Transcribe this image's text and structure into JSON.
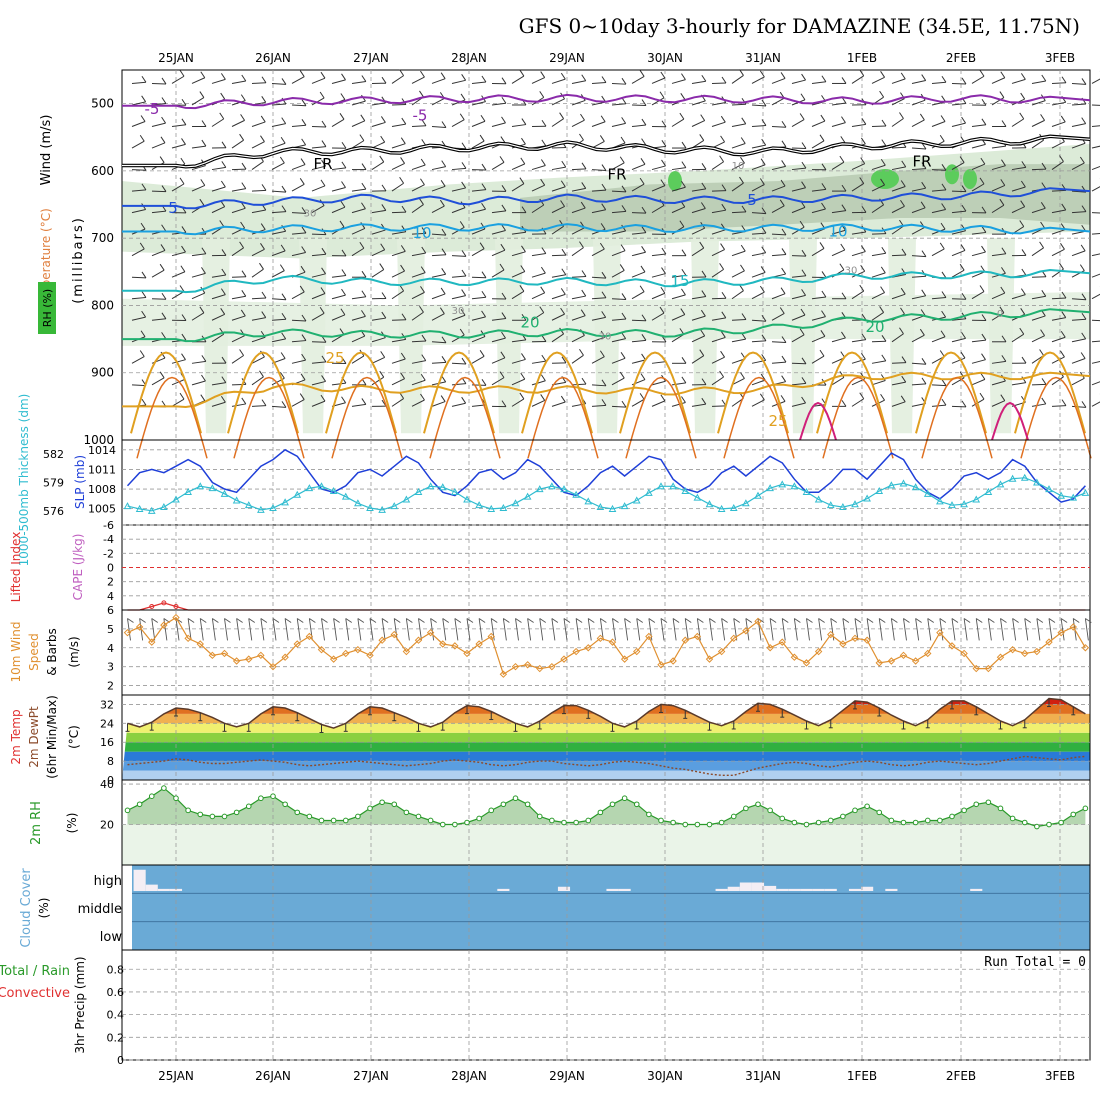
{
  "title": "GFS 0~10day 3-hourly for DAMAZINE (34.5E, 11.75N)",
  "dates": [
    "25JAN",
    "26JAN",
    "27JAN",
    "28JAN",
    "29JAN",
    "30JAN",
    "31JAN",
    "1FEB",
    "2FEB",
    "3FEB"
  ],
  "colors": {
    "rh_green": "#38b838",
    "dewpt": "#8b4a2a",
    "rh2m": "#2a9a2a",
    "cloud": "#6aaad6",
    "slp": "#1f3fd8",
    "thickness": "#30bcd0",
    "wind10m": "#e09030",
    "lifted": "#e03030",
    "cape": "#c060c0"
  },
  "panels": {
    "upper_air": {
      "label_wind": "Wind (m/s)",
      "label_temp": "Temperature (°C)",
      "label_rh": "RH (%)",
      "label_units": "(millibars)",
      "yticks": [
        "500",
        "600",
        "700",
        "800",
        "900",
        "1000"
      ],
      "contour_labels": [
        "-5",
        "-5",
        "FR",
        "FR",
        "FR",
        "5",
        "5",
        "10",
        "10",
        "15",
        "20",
        "20",
        "25",
        "25",
        "10",
        "30",
        "30",
        "30",
        "30",
        "0"
      ]
    },
    "slp_thickness": {
      "label_thickness": "1000-500mb Thickness (dm)",
      "label_slp": "SLP (mb)",
      "yticks_left": [
        "582",
        "579",
        "576"
      ],
      "yticks_right": [
        "1014",
        "1011",
        "1008",
        "1005"
      ]
    },
    "lifted_cape": {
      "label_lifted": "Lifted Index",
      "label_cape": "CAPE (J/kg)",
      "yticks": [
        "-6",
        "-4",
        "-2",
        "0",
        "2",
        "4",
        "6"
      ]
    },
    "wind10m": {
      "label_wind": "10m Wind",
      "label_speed": "Speed",
      "label_barbs": "& Barbs",
      "label_units": "(m/s)",
      "yticks": [
        "5",
        "4",
        "3",
        "2"
      ]
    },
    "temp2m": {
      "label_temp": "2m Temp",
      "label_dewpt": "2m DewPt",
      "label_minmax": "(6hr Min/Max)",
      "label_units": "(°C)",
      "yticks": [
        "32",
        "24",
        "16",
        "8",
        "0"
      ]
    },
    "rh2m": {
      "label": "2m RH",
      "label_units": "(%)",
      "yticks": [
        "40",
        "20"
      ]
    },
    "cloud": {
      "label": "Cloud Cover",
      "label_units": "(%)",
      "levels": [
        "high",
        "middle",
        "low"
      ]
    },
    "precip": {
      "label_total": "Total / Rain",
      "label_conv": "Convective",
      "label_units": "3hr Precip (mm)",
      "yticks": [
        "0.8",
        "0.6",
        "0.4",
        "0.2",
        "0"
      ],
      "run_total": "Run Total = 0"
    }
  },
  "chart_data": [
    {
      "type": "line",
      "panel": "upper_air",
      "ylabel": "(millibars)",
      "ylim": [
        1000,
        450
      ],
      "x": [
        "25JAN",
        "26JAN",
        "27JAN",
        "28JAN",
        "29JAN",
        "30JAN",
        "31JAN",
        "1FEB",
        "2FEB",
        "3FEB"
      ],
      "series": [
        {
          "name": "-5",
          "values": [
            503,
            497,
            495,
            493,
            492,
            493,
            494,
            496,
            492,
            495
          ]
        },
        {
          "name": "FR",
          "values": [
            592,
            572,
            570,
            565,
            562,
            568,
            572,
            563,
            558,
            553
          ]
        },
        {
          "name": "5",
          "values": [
            652,
            645,
            640,
            645,
            640,
            643,
            643,
            640,
            637,
            630
          ]
        },
        {
          "name": "10",
          "values": [
            690,
            686,
            684,
            684,
            684,
            686,
            685,
            684,
            686,
            690
          ]
        },
        {
          "name": "15",
          "values": [
            778,
            760,
            765,
            765,
            764,
            767,
            764,
            756,
            755,
            752
          ]
        },
        {
          "name": "20",
          "values": [
            850,
            840,
            843,
            843,
            840,
            842,
            835,
            820,
            816,
            810
          ]
        },
        {
          "name": "25",
          "values": [
            950,
            920,
            925,
            925,
            925,
            928,
            925,
            905,
            905,
            905
          ]
        }
      ]
    },
    {
      "type": "line",
      "panel": "slp_thickness",
      "x_step_hours": 3,
      "series": [
        {
          "name": "SLP (mb)",
          "values": [
            1008.0,
            1007.5,
            1008.5,
            1010.5,
            1011.0,
            1010.5,
            1011.5,
            1012.5,
            1011.5,
            1009.0,
            1008.0,
            1007.5,
            1009.5,
            1011.5,
            1012.5,
            1014.0,
            1013.0,
            1010.5,
            1008.0,
            1007.5,
            1008.5,
            1010.5,
            1011.0,
            1010.0,
            1011.5,
            1013.0,
            1012.0,
            1009.5,
            1007.5,
            1007.0,
            1008.5,
            1010.5,
            1011.0,
            1009.5,
            1010.5,
            1012.5,
            1011.5,
            1009.5,
            1007.5,
            1007.0,
            1008.5,
            1010.5,
            1011.5,
            1010.0,
            1011.5,
            1013.0,
            1012.5,
            1009.5,
            1008.0,
            1007.5,
            1008.5,
            1010.5,
            1011.5,
            1010.0,
            1011.5,
            1013.0,
            1012.0,
            1009.5,
            1007.5,
            1007.5,
            1009.0,
            1011.0,
            1011.0,
            1009.5,
            1011.5,
            1013.5,
            1012.5,
            1009.5,
            1007.5,
            1006.5,
            1008.0,
            1010.0,
            1010.5,
            1009.5,
            1010.5,
            1012.5,
            1011.5,
            1009.0,
            1007.5,
            1006.0,
            1006.5,
            1008.5,
            1009.5,
            1008.0,
            1009.5,
            1011.0,
            1010.5,
            1008.5,
            1006.5,
            1005.5,
            1006.5,
            1008.5,
            1009.0,
            1007.5
          ]
        },
        {
          "name": "1000-500mb Thickness (dm)",
          "values": [
            577.8,
            577.2,
            576.5,
            576.2,
            576.0,
            576.4,
            577.2,
            578.0,
            578.6,
            578.4,
            577.8,
            577.1,
            576.6,
            576.1,
            576.3,
            576.9,
            577.7,
            578.4,
            578.6,
            578.1,
            577.5,
            576.8,
            576.3,
            576.1,
            576.5,
            577.2,
            578.0,
            578.6,
            578.5,
            578.0,
            577.2,
            576.6,
            576.2,
            576.3,
            576.8,
            577.5,
            578.3,
            578.6,
            578.3,
            577.7,
            577.0,
            576.4,
            576.2,
            576.5,
            577.1,
            577.9,
            578.6,
            578.6,
            578.1,
            577.4,
            576.7,
            576.2,
            576.3,
            576.8,
            577.6,
            578.4,
            578.8,
            578.6,
            578.0,
            577.2,
            576.6,
            576.4,
            576.7,
            577.3,
            578.1,
            578.7,
            578.9,
            578.5,
            577.8,
            577.0,
            576.6,
            576.7,
            577.2,
            578.0,
            578.8,
            579.4,
            579.5,
            579.0,
            578.3,
            577.6,
            577.4,
            577.9,
            578.8,
            579.7,
            580.4,
            580.6,
            580.1,
            579.3,
            578.6,
            578.4,
            578.9,
            579.8,
            580.7,
            581.2
          ]
        }
      ]
    },
    {
      "type": "line",
      "panel": "lifted_cape",
      "ylim": [
        6,
        -6
      ],
      "series": [
        {
          "name": "Lifted Index",
          "values": [
            5.0,
            6.5,
            6.5,
            6.5,
            5.5,
            5.0,
            5.5,
            6.5,
            6.5,
            6.5,
            6.5,
            6.5,
            6.5,
            6.5,
            6.5,
            6.5,
            6.5,
            6.5,
            6.5,
            6.0,
            6.0,
            6.5,
            6.5,
            6.5,
            6.5,
            6.5,
            6.5,
            6.5,
            6.5,
            6.5,
            6.5,
            6.5,
            6.5,
            6.5,
            6.5,
            6.5,
            6.5,
            6.5,
            6.5,
            6.5,
            6.5,
            6.5,
            6.5,
            6.5,
            6.5,
            6.5,
            6.5,
            6.5,
            6.5,
            6.5,
            6.5,
            6.0,
            6.0,
            6.5,
            6.5,
            6.5,
            6.5,
            6.5,
            6.5,
            6.5,
            6.5,
            6.5,
            6.5,
            6.5,
            6.5,
            6.5,
            6.5,
            6.5,
            6.5,
            6.5,
            6.5,
            6.5,
            6.5,
            6.5,
            6.5,
            6.5,
            6.5,
            6.5,
            6.5,
            6.5,
            6.5,
            6.5,
            6.5,
            6.5,
            6.5,
            6.5,
            6.5,
            6.5,
            6.0,
            5.0,
            5.0,
            6.0,
            6.5,
            6.5
          ]
        },
        {
          "name": "CAPE (J/kg)",
          "values": [
            0
          ]
        }
      ]
    },
    {
      "type": "line",
      "panel": "wind10m",
      "ylim": [
        1.5,
        6
      ],
      "series": [
        {
          "name": "10m Wind Speed",
          "values": [
            3.6,
            5.0,
            4.8,
            5.1,
            4.3,
            5.2,
            5.6,
            4.5,
            4.2,
            3.6,
            3.7,
            3.3,
            3.4,
            3.6,
            3.0,
            3.5,
            4.2,
            4.6,
            3.9,
            3.4,
            3.7,
            3.9,
            3.6,
            4.4,
            4.7,
            3.8,
            4.4,
            4.8,
            4.2,
            4.1,
            3.7,
            4.2,
            4.6,
            2.6,
            3.0,
            3.1,
            2.9,
            3.0,
            3.4,
            3.8,
            4.0,
            4.5,
            4.3,
            3.4,
            3.8,
            4.6,
            3.1,
            3.3,
            4.4,
            4.6,
            3.4,
            3.8,
            4.5,
            4.9,
            5.4,
            4.0,
            4.3,
            3.5,
            3.2,
            3.8,
            4.7,
            4.2,
            4.5,
            4.4,
            3.2,
            3.3,
            3.6,
            3.3,
            3.7,
            4.8,
            4.1,
            3.7,
            2.9,
            2.9,
            3.5,
            3.9,
            3.7,
            3.8,
            4.3,
            4.8,
            5.1,
            4.0,
            3.3,
            2.7,
            3.4,
            3.8,
            3.3,
            4.6,
            4.7,
            4.7,
            3.6,
            3.4,
            3.3,
            3.9
          ]
        }
      ]
    },
    {
      "type": "area",
      "panel": "temp2m",
      "ylim": [
        0,
        36
      ],
      "series": [
        {
          "name": "2m Temp",
          "values": [
            27.5,
            26.0,
            24.0,
            22.5,
            24.5,
            28.0,
            30.5,
            30.0,
            28.5,
            26.5,
            24.0,
            22.5,
            24.0,
            28.0,
            31.0,
            30.5,
            28.5,
            26.0,
            23.5,
            22.0,
            24.0,
            28.0,
            31.0,
            30.5,
            28.5,
            26.5,
            24.0,
            22.5,
            24.5,
            28.5,
            31.5,
            31.0,
            29.0,
            26.5,
            24.0,
            22.5,
            25.0,
            28.5,
            31.5,
            31.5,
            29.5,
            27.0,
            24.0,
            22.5,
            25.0,
            29.0,
            32.0,
            31.5,
            29.5,
            27.0,
            24.5,
            23.0,
            25.0,
            29.0,
            32.5,
            32.0,
            30.0,
            27.5,
            25.0,
            23.0,
            25.5,
            29.5,
            33.5,
            33.0,
            30.5,
            27.5,
            25.0,
            23.0,
            25.5,
            30.0,
            33.5,
            33.5,
            31.0,
            28.0,
            25.0,
            23.0,
            25.5,
            30.0,
            34.5,
            34.0,
            31.0,
            28.0,
            25.5,
            24.0,
            26.0
          ]
        },
        {
          "name": "2m DewPt",
          "values": [
            8.0,
            7.0,
            6.5,
            7.0,
            7.5,
            8.0,
            9.0,
            8.5,
            7.5,
            7.0,
            7.0,
            7.5,
            8.0,
            8.5,
            8.0,
            7.5,
            6.5,
            6.0,
            6.5,
            7.0,
            7.5,
            8.0,
            7.5,
            7.0,
            6.5,
            6.0,
            6.5,
            7.0,
            8.0,
            8.5,
            8.0,
            7.5,
            6.5,
            6.0,
            6.5,
            7.5,
            8.0,
            8.0,
            7.0,
            6.5,
            6.0,
            6.5,
            7.5,
            8.0,
            7.5,
            7.0,
            6.0,
            5.0,
            4.5,
            3.5,
            2.5,
            2.0,
            2.0,
            3.5,
            5.0,
            6.0,
            7.0,
            7.5,
            7.0,
            6.0,
            5.5,
            6.5,
            7.5,
            8.0,
            7.5,
            6.5,
            6.0,
            6.5,
            7.5,
            8.0,
            7.5,
            7.0,
            6.5,
            7.0,
            8.0,
            9.0,
            10.0,
            9.5,
            9.0,
            8.5,
            9.5,
            10.0,
            9.5,
            9.0
          ]
        }
      ]
    },
    {
      "type": "area",
      "panel": "rh2m",
      "ylim": [
        0,
        42
      ],
      "series": [
        {
          "name": "2m RH",
          "values": [
            26,
            25,
            27,
            30,
            34,
            38,
            33,
            27,
            25,
            24,
            24,
            26,
            29,
            33,
            34,
            30,
            26,
            24,
            22,
            22,
            22,
            24,
            28,
            31,
            30,
            26,
            24,
            22,
            20,
            20,
            21,
            23,
            27,
            30,
            33,
            30,
            24,
            22,
            21,
            21,
            22,
            26,
            30,
            33,
            30,
            25,
            22,
            21,
            20,
            20,
            20,
            21,
            24,
            28,
            30,
            27,
            23,
            21,
            20,
            21,
            22,
            24,
            27,
            29,
            26,
            22,
            21,
            21,
            22,
            22,
            24,
            27,
            30,
            31,
            28,
            23,
            21,
            19,
            20,
            21,
            25,
            28,
            30,
            30,
            25,
            21,
            20,
            22,
            27,
            33,
            35,
            33
          ]
        }
      ]
    },
    {
      "type": "bar",
      "panel": "cloud",
      "series": [
        {
          "name": "high",
          "values": [
            0,
            0,
            10,
            50,
            15,
            5,
            5,
            0,
            0,
            0,
            0,
            0,
            0,
            0,
            0,
            0,
            0,
            0,
            0,
            0,
            0,
            0,
            0,
            0,
            0,
            0,
            0,
            0,
            0,
            0,
            0,
            0,
            0,
            5,
            0,
            0,
            0,
            0,
            10,
            0,
            0,
            0,
            5,
            5,
            0,
            0,
            0,
            0,
            0,
            0,
            0,
            5,
            10,
            20,
            20,
            12,
            5,
            5,
            5,
            5,
            5,
            0,
            5,
            10,
            0,
            5,
            0,
            0,
            0,
            0,
            0,
            0,
            5,
            0,
            0,
            0,
            0,
            0,
            0,
            0,
            0,
            0,
            0,
            0,
            0,
            0,
            5,
            0,
            0,
            0,
            0,
            0,
            0,
            0
          ]
        }
      ]
    },
    {
      "type": "bar",
      "panel": "precip",
      "ylim": [
        0,
        1
      ],
      "series": [
        {
          "name": "Total / Rain",
          "values": [
            0
          ]
        },
        {
          "name": "Convective",
          "values": [
            0
          ]
        }
      ]
    }
  ]
}
